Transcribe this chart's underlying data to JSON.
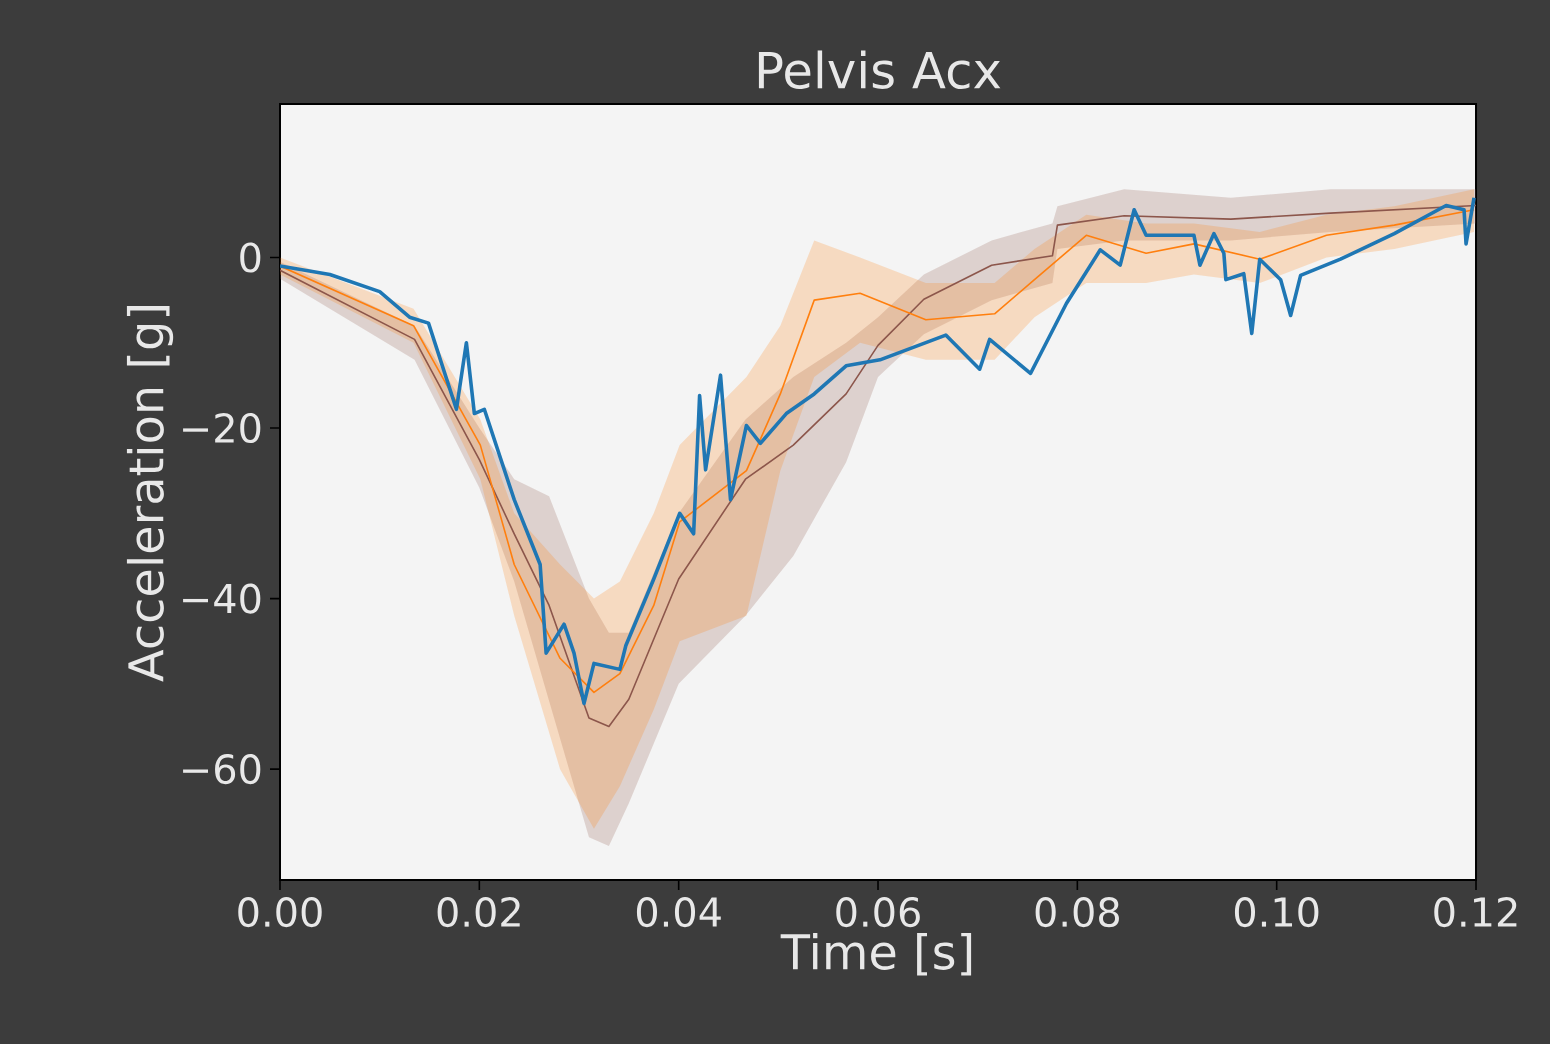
{
  "chart_data": {
    "type": "line",
    "title": "Pelvis Acx",
    "xlabel": "Time [s]",
    "ylabel": "Acceleration [g]",
    "xlim": [
      0,
      0.12
    ],
    "ylim": [
      -73,
      18
    ],
    "xticks": [
      {
        "value": 0,
        "label": "0.00"
      },
      {
        "value": 0.02,
        "label": "0.02"
      },
      {
        "value": 0.04,
        "label": "0.04"
      },
      {
        "value": 0.06,
        "label": "0.06"
      },
      {
        "value": 0.08,
        "label": "0.08"
      },
      {
        "value": 0.1,
        "label": "0.10"
      },
      {
        "value": 0.12,
        "label": "0.12"
      }
    ],
    "yticks": [
      {
        "value": -60,
        "label": "−60"
      },
      {
        "value": -40,
        "label": "−40"
      },
      {
        "value": -20,
        "label": "−20"
      },
      {
        "value": 0,
        "label": "0"
      }
    ],
    "marker": "none",
    "line_style": "solid",
    "series": [
      {
        "color": "#8c564b",
        "x": [
          0,
          0.0135,
          0.02,
          0.0235,
          0.027,
          0.031,
          0.033,
          0.035,
          0.04,
          0.0467,
          0.0515,
          0.0568,
          0.06,
          0.0646,
          0.0714,
          0.0775,
          0.078,
          0.0847,
          0.0954,
          0.1054,
          0.12
        ],
        "values": [
          -1.5,
          -9.6,
          -23.7,
          -32.4,
          -40.8,
          -54,
          -55,
          -51.8,
          -37.7,
          -26,
          -22,
          -16,
          -10.3,
          -4.9,
          -0.9,
          0.2,
          3.8,
          4.9,
          4.5,
          5.2,
          6.1
        ],
        "lower": [
          -2.5,
          -12,
          -27,
          -38,
          -52,
          -68,
          -69,
          -64,
          -50,
          -42,
          -35,
          -24,
          -14,
          -9,
          -5,
          -3,
          1,
          2,
          2,
          3,
          4
        ],
        "upper": [
          -0.5,
          -8,
          -20,
          -26,
          -28,
          -40,
          -44,
          -44,
          -30,
          -19,
          -14,
          -10,
          -7,
          -2,
          2,
          4,
          6,
          8,
          7,
          8,
          8
        ]
      },
      {
        "color": "#ff7f0e",
        "x": [
          0,
          0.0134,
          0.0201,
          0.0235,
          0.0281,
          0.0315,
          0.0341,
          0.0375,
          0.0401,
          0.0468,
          0.0502,
          0.0536,
          0.0582,
          0.0648,
          0.0717,
          0.0757,
          0.0809,
          0.0869,
          0.0917,
          0.0983,
          0.105,
          0.1118,
          0.1198
        ],
        "values": [
          -1,
          -8,
          -22,
          -36,
          -47,
          -51,
          -48.8,
          -40.8,
          -31,
          -25,
          -16,
          -5,
          -4.2,
          -7.3,
          -6.6,
          -2.6,
          2.6,
          0.5,
          1.6,
          -0.2,
          2.6,
          3.8,
          5.6
        ],
        "lower": [
          -2,
          -10,
          -26,
          -42,
          -60,
          -67,
          -62,
          -53,
          -45,
          -42,
          -25,
          -14,
          -10,
          -12,
          -12,
          -7,
          -3,
          -3,
          -2,
          -3,
          0,
          1,
          3
        ],
        "upper": [
          0,
          -6,
          -19,
          -30,
          -36,
          -40,
          -38,
          -30,
          -22,
          -14,
          -8,
          2,
          0,
          -3,
          -3,
          1,
          5,
          4,
          4,
          3,
          5,
          6,
          8
        ]
      },
      {
        "color": "#1f77b4",
        "x": [
          0,
          0.005,
          0.01,
          0.013,
          0.0149,
          0.0177,
          0.0187,
          0.0195,
          0.0205,
          0.0235,
          0.0261,
          0.0267,
          0.0285,
          0.0295,
          0.0305,
          0.0315,
          0.0341,
          0.0347,
          0.0375,
          0.0401,
          0.0415,
          0.0421,
          0.0427,
          0.0442,
          0.0452,
          0.0468,
          0.0482,
          0.0508,
          0.0536,
          0.0568,
          0.0602,
          0.0668,
          0.0702,
          0.0712,
          0.0753,
          0.0789,
          0.0823,
          0.0843,
          0.0857,
          0.0869,
          0.0917,
          0.0923,
          0.0937,
          0.0947,
          0.0949,
          0.0967,
          0.0975,
          0.0983,
          0.1004,
          0.1014,
          0.1024,
          0.1064,
          0.1118,
          0.117,
          0.1188,
          0.119,
          0.1198
        ],
        "values": [
          -1,
          -2,
          -4,
          -7,
          -7.7,
          -17.8,
          -10,
          -18.3,
          -17.8,
          -28.4,
          -36,
          -46.4,
          -43,
          -46.4,
          -52.3,
          -47.6,
          -48.3,
          -45.5,
          -37.7,
          -30,
          -32.4,
          -16.2,
          -24.9,
          -13.8,
          -28.4,
          -19.7,
          -21.8,
          -18.3,
          -16,
          -12.7,
          -12,
          -9.1,
          -13.1,
          -9.6,
          -13.6,
          -5.4,
          0.9,
          -0.9,
          5.6,
          2.6,
          2.6,
          -0.9,
          2.8,
          0.5,
          -2.6,
          -1.9,
          -8.9,
          -0.2,
          -2.6,
          -6.8,
          -2.1,
          -0.2,
          2.8,
          6.1,
          5.6,
          1.6,
          7
        ]
      }
    ]
  }
}
